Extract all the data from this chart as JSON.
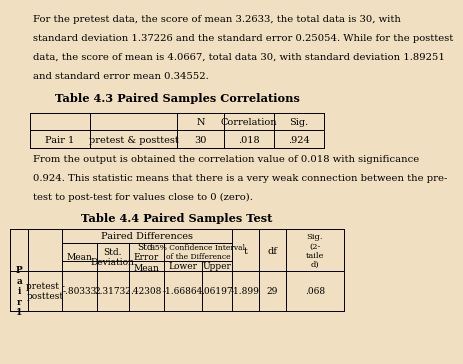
{
  "title1": "Table 4.3 Paired Samples Correlations",
  "title2": "Table 4.4 Paired Samples Test",
  "body_text": [
    "For the pretest data, the score of mean 3.2633, the total data is 30, with",
    "standard deviation 1.37226 and the standard error 0.25054. While for the posttest",
    "data, the score of mean is 4.0667, total data 30, with standard deviation 1.89251",
    "and standard error mean 0.34552."
  ],
  "body_text2": [
    "From the output is obtained the correlation value of 0.018 with significance",
    "0.924. This statistic means that there is a very weak connection between the pre-",
    "test to post-test for values close to 0 (zero)."
  ],
  "table1_headers": [
    "",
    "",
    "N",
    "Correlation",
    "Sig."
  ],
  "table1_row": [
    "Pair 1",
    "pretest & posttest",
    "30",
    ".018",
    ".924"
  ],
  "table2_row_label": "P\na\ni\nr\n1",
  "table2_row": [
    "pretest -\nposttest",
    "-.80333",
    "2.31732",
    ".42308",
    "-1.66864",
    ".06197",
    "-1.899",
    "29",
    ".068"
  ],
  "bg_color": "#f0dfc0",
  "font_size_body": 7.2,
  "font_size_title": 8.2,
  "font_size_table": 7.0
}
